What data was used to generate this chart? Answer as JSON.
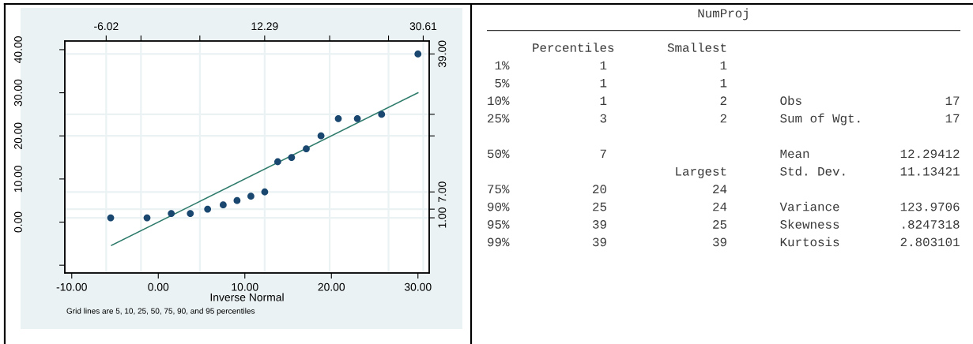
{
  "chart_data": [
    {
      "type": "scatter",
      "xlabel": "Inverse Normal",
      "annotations": [
        "Grid lines are 5, 10, 25, 50, 75, 90, and 95 percentiles"
      ],
      "series": [
        {
          "type": "scatter",
          "color": "#1a476f",
          "marker": "circle",
          "x": [
            -5.5,
            -1.3,
            1.5,
            3.7,
            5.7,
            7.5,
            9.1,
            10.7,
            12.3,
            13.8,
            15.4,
            17.1,
            18.8,
            20.8,
            23.0,
            25.8,
            30.0
          ],
          "values": [
            1,
            1,
            2,
            2,
            3,
            4,
            5,
            6,
            7,
            14,
            15,
            17,
            20,
            24,
            24,
            25,
            39
          ]
        },
        {
          "type": "line",
          "color": "#2e7b6b",
          "line_style": "solid",
          "marker": "none",
          "x": [
            -5.4,
            30.0
          ],
          "values": [
            -5.4,
            30.0
          ]
        }
      ],
      "xlim": [
        -10.8,
        31.3
      ],
      "xticks": [
        {
          "value": -10,
          "label": "-10.00"
        },
        {
          "value": 0,
          "label": "0.00"
        },
        {
          "value": 10,
          "label": "10.00"
        },
        {
          "value": 20,
          "label": "20.00"
        },
        {
          "value": 30,
          "label": "30.00"
        }
      ],
      "ylim": [
        -11.8,
        42.0
      ],
      "yticks": [
        {
          "value": -10,
          "label": null
        },
        {
          "value": 0,
          "label": "0.00"
        },
        {
          "value": 10,
          "label": "10.00"
        },
        {
          "value": 20,
          "label": "20.00"
        },
        {
          "value": 30,
          "label": "30.00"
        },
        {
          "value": 40,
          "label": "40.00"
        }
      ],
      "x2lim": [
        -10.8,
        31.3
      ],
      "x2ticks": [
        -6.02,
        {
          "value": -2.0,
          "label": null
        },
        {
          "value": 4.8,
          "label": null
        },
        12.29,
        {
          "value": 19.8,
          "label": null
        },
        {
          "value": 26.6,
          "label": null
        },
        30.61
      ],
      "y2lim": [
        -11.8,
        42.0
      ],
      "y2ticks": [
        {
          "value": 1,
          "label": "1.00"
        },
        {
          "value": 3,
          "label": null
        },
        {
          "value": 7,
          "label": "7.00"
        },
        {
          "value": 20,
          "label": null
        },
        {
          "value": 25,
          "label": null
        },
        {
          "value": 39,
          "label": "39.00"
        }
      ],
      "grid": true
    },
    {
      "type": "other",
      "title": "NumProj",
      "annotations": [
        "      Percentiles       Smallest",
        " 1%            1               1",
        " 5%            1               1",
        "10%            1               2       Obs                   17",
        "25%            3               2       Sum of Wgt.           17",
        "50%            7                       Mean            12.29412",
        "                         Largest       Std. Dev.       11.13421",
        "75%           20              24",
        "90%           25              24       Variance        123.9706",
        "95%           39              25       Skewness        .8247318",
        "99%           39              39       Kurtosis        2.803101"
      ]
    }
  ]
}
